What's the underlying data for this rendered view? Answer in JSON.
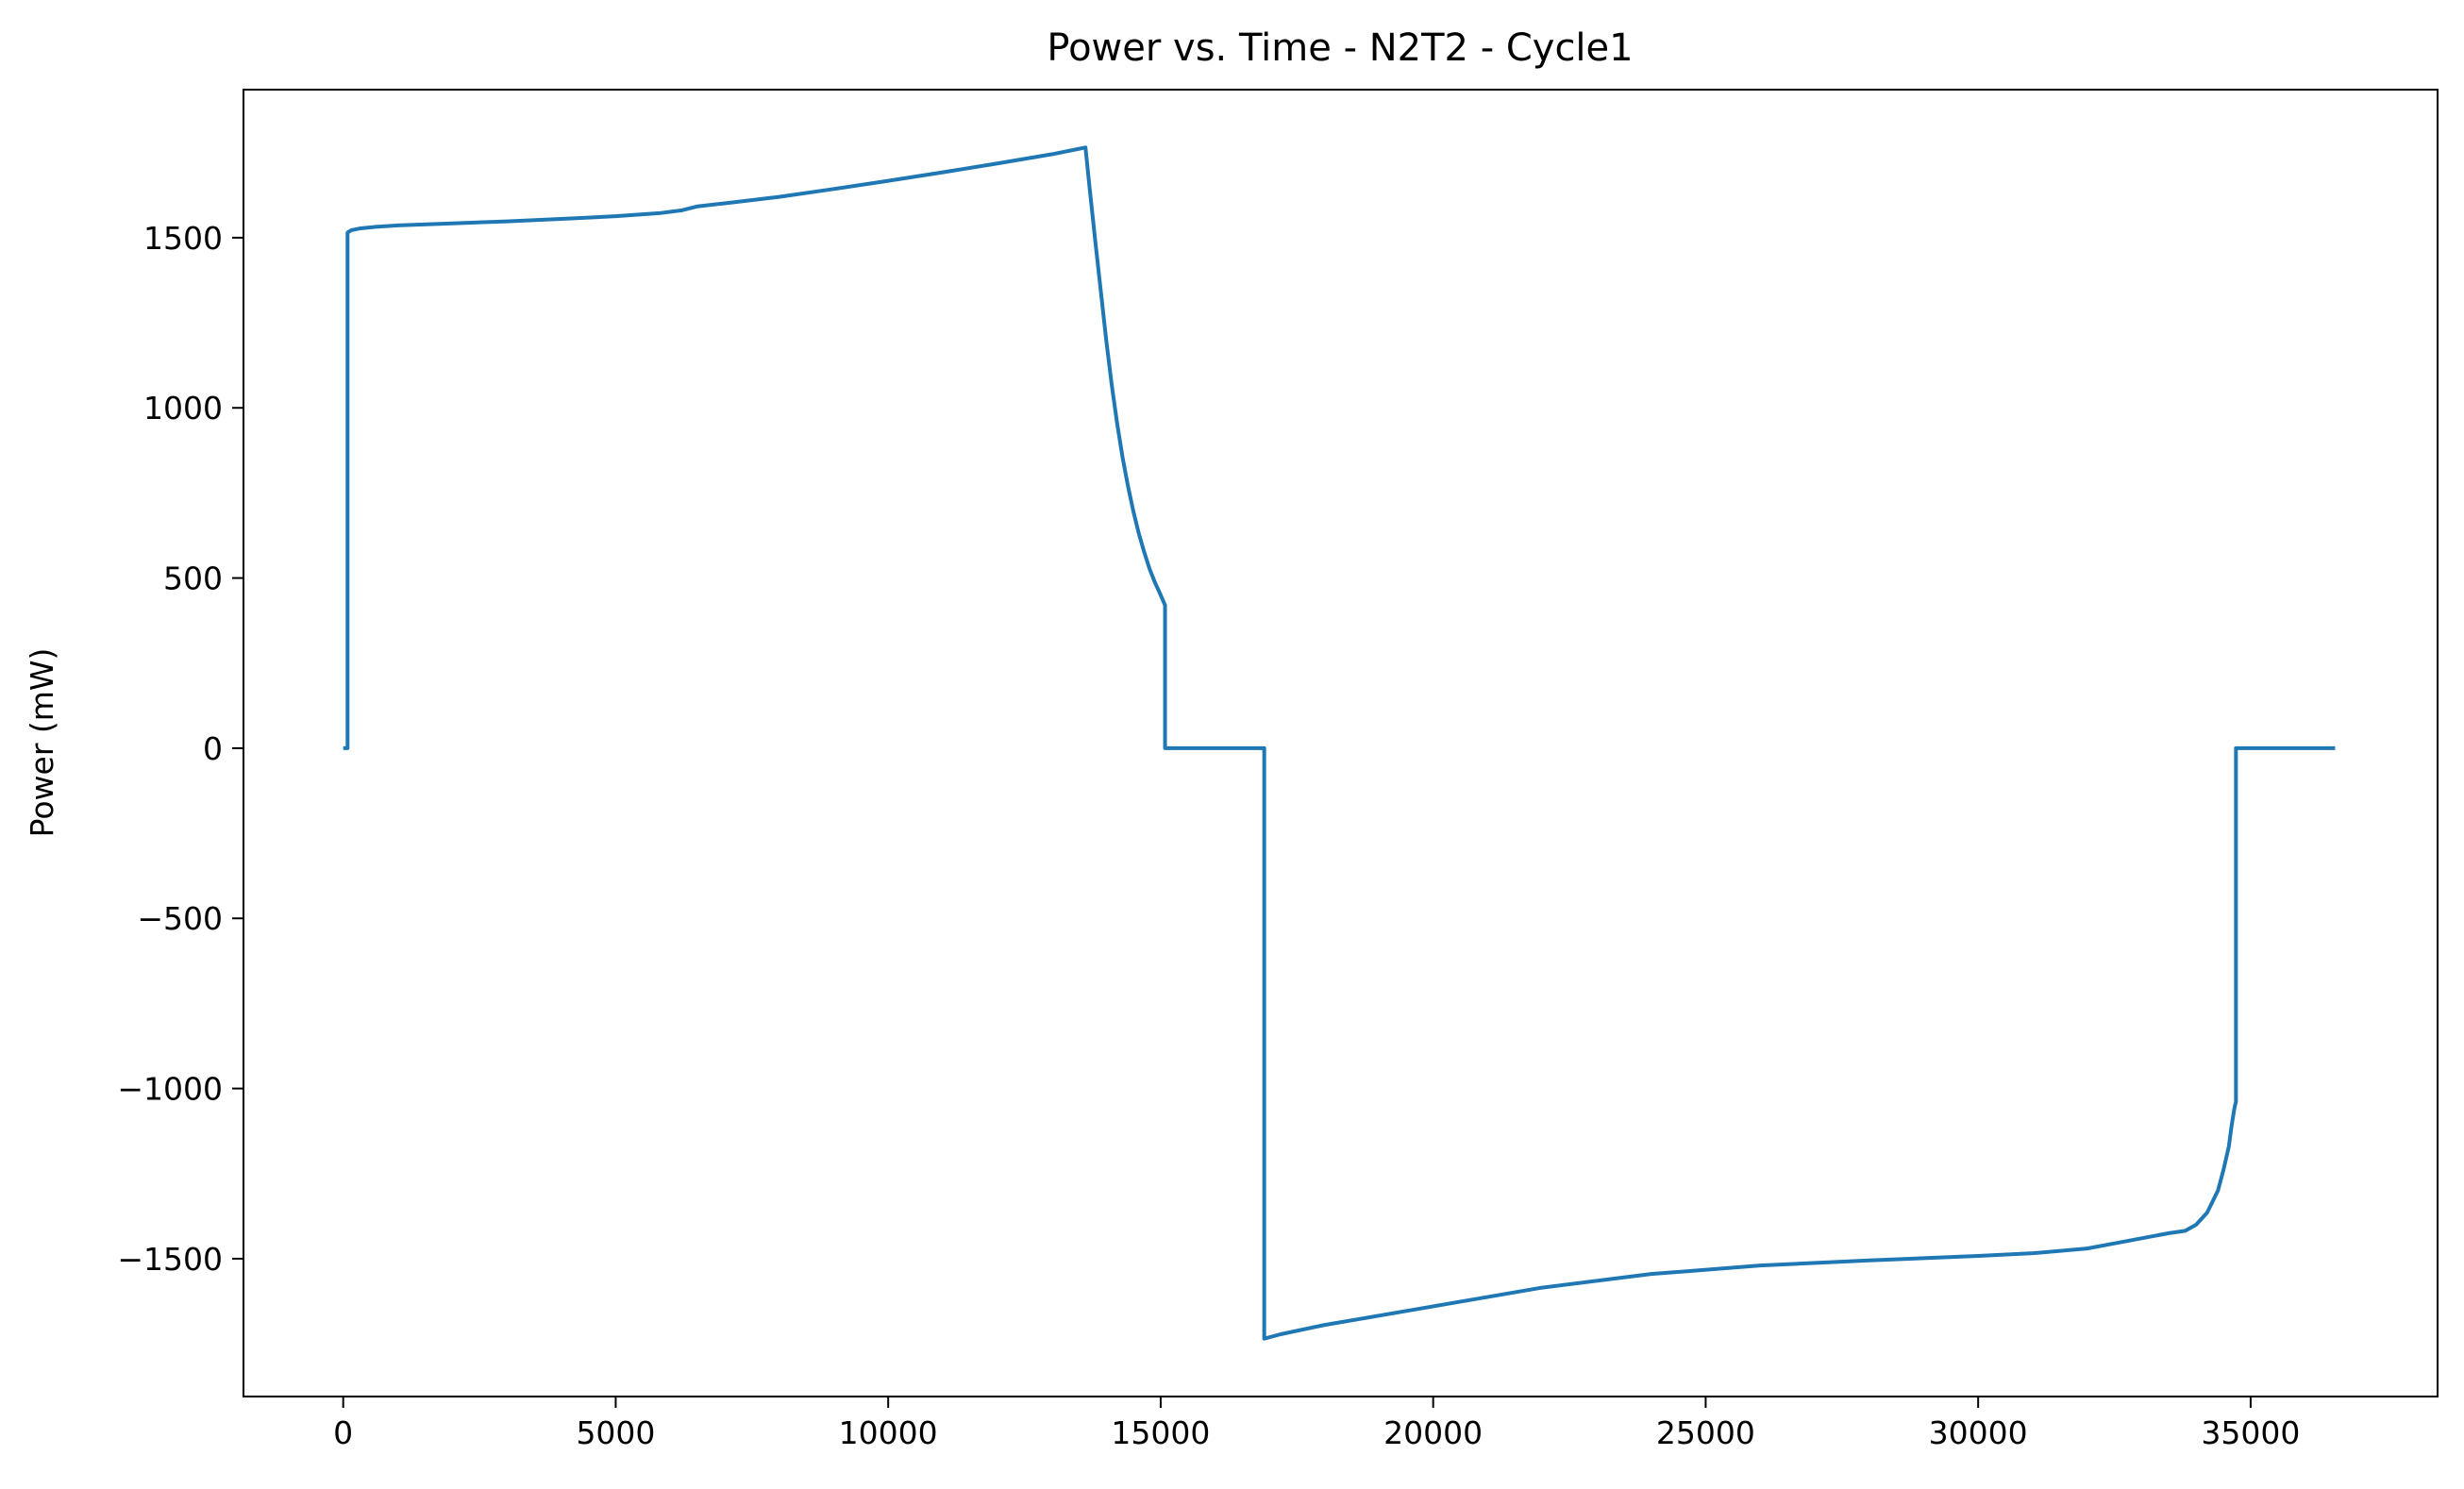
{
  "chart_data": {
    "type": "line",
    "title": "Power vs. Time - N2T2 - Cycle1",
    "xlabel": "",
    "ylabel": "Power (mW)",
    "xlim": [
      -1830,
      38430
    ],
    "ylim": [
      -1905,
      1935
    ],
    "grid": false,
    "legend": null,
    "x_ticks": [
      0,
      5000,
      10000,
      15000,
      20000,
      25000,
      30000,
      35000
    ],
    "x_tick_labels": [
      "0",
      "5000",
      "10000",
      "15000",
      "20000",
      "25000",
      "30000",
      "35000"
    ],
    "y_ticks": [
      1500,
      1000,
      500,
      0,
      -500,
      -1000,
      -1500
    ],
    "y_tick_labels": [
      "1500",
      "1000",
      "500",
      "0",
      "−500",
      "−1000",
      "−1500"
    ],
    "color": "#1f77b4",
    "series": [
      {
        "name": "Power",
        "x": [
          0,
          80,
          80,
          150,
          300,
          600,
          1000,
          2000,
          3000,
          4000,
          5000,
          5800,
          6200,
          6500,
          7000,
          8000,
          9000,
          10000,
          11000,
          12000,
          13000,
          13620,
          13700,
          13800,
          13900,
          14000,
          14100,
          14200,
          14300,
          14400,
          14500,
          14600,
          14700,
          14800,
          14900,
          15000,
          15080,
          15080,
          16000,
          16900,
          16900,
          17200,
          18000,
          20000,
          22000,
          24000,
          26000,
          28000,
          30000,
          31000,
          32000,
          32400,
          33000,
          33500,
          33800,
          34000,
          34200,
          34400,
          34500,
          34600,
          34650,
          34700,
          34720,
          34730,
          34730,
          35500,
          36550
        ],
        "y": [
          0,
          0,
          1515,
          1522,
          1527,
          1532,
          1536,
          1542,
          1548,
          1555,
          1563,
          1572,
          1580,
          1592,
          1601,
          1620,
          1643,
          1667,
          1692,
          1718,
          1745,
          1765,
          1640,
          1490,
          1345,
          1200,
          1070,
          955,
          855,
          770,
          695,
          630,
          575,
          525,
          485,
          450,
          420,
          0,
          0,
          0,
          -1735,
          -1722,
          -1695,
          -1640,
          -1585,
          -1545,
          -1520,
          -1505,
          -1492,
          -1484,
          -1470,
          -1458,
          -1440,
          -1425,
          -1418,
          -1400,
          -1365,
          -1300,
          -1240,
          -1170,
          -1110,
          -1060,
          -1045,
          -1040,
          0,
          0,
          0
        ]
      }
    ]
  }
}
